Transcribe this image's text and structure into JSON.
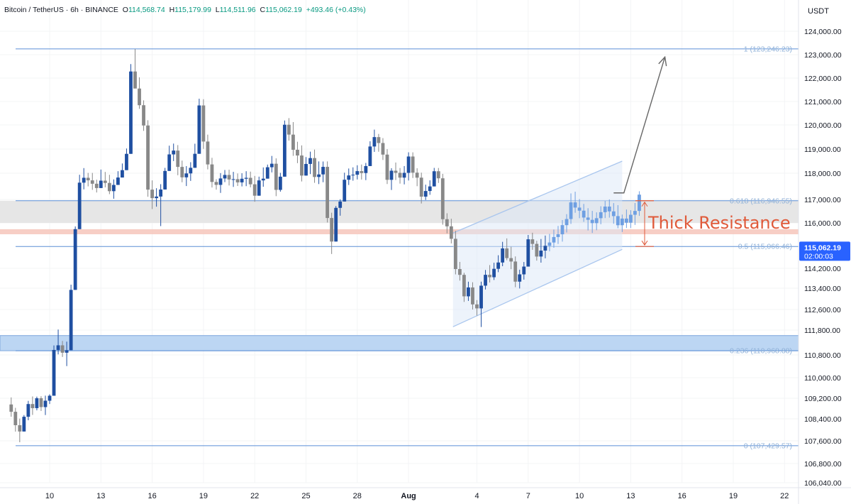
{
  "header": {
    "pair": "Bitcoin / TetherUS",
    "timeframe": "6h",
    "exchange": "BINANCE",
    "open": "114,568.74",
    "high": "115,179.99",
    "low": "114,511.96",
    "close": "115,062.19",
    "change": "+493.46 (+0.43%)"
  },
  "price_axis_unit": "USDT",
  "current_price": {
    "value": 115062.19,
    "label": "115,062.19",
    "timer": "02:00:03"
  },
  "annotation_text": "Thick Resistance",
  "colors": {
    "up": "#1f4fa1",
    "down": "#888888",
    "fib_line": "#5b8fd6",
    "resistance_text": "#e05a3a",
    "channel": "#a9c6ee"
  },
  "chart_data": {
    "type": "candlestick",
    "title": "Bitcoin / TetherUS · 6h · BINANCE",
    "ylabel": "USDT",
    "ylim": [
      106040,
      124700
    ],
    "y_ticks": [
      "124,000.00",
      "123,000.00",
      "122,000.00",
      "121,000.00",
      "120,000.00",
      "119,000.00",
      "118,000.00",
      "117,000.00",
      "116,000.00",
      "114,200.00",
      "113,400.00",
      "112,600.00",
      "111,800.00",
      "110,800.00",
      "110,000.00",
      "109,200.00",
      "108,400.00",
      "107,600.00",
      "106,800.00",
      "106,040.00"
    ],
    "x_ticks": [
      {
        "label": "10",
        "day": 10
      },
      {
        "label": "13",
        "day": 13
      },
      {
        "label": "16",
        "day": 16
      },
      {
        "label": "19",
        "day": 19
      },
      {
        "label": "22",
        "day": 22
      },
      {
        "label": "25",
        "day": 25
      },
      {
        "label": "28",
        "day": 28
      },
      {
        "label": "Aug",
        "day": 31
      },
      {
        "label": "4",
        "day": 35
      },
      {
        "label": "7",
        "day": 38
      },
      {
        "label": "10",
        "day": 41
      },
      {
        "label": "13",
        "day": 44
      },
      {
        "label": "16",
        "day": 47
      },
      {
        "label": "19",
        "day": 50
      },
      {
        "label": "22",
        "day": 53
      }
    ],
    "fib_levels": [
      {
        "level": "1",
        "price": 123246.23,
        "label": "1 (123,246.23)"
      },
      {
        "level": "0.618",
        "price": 116946.55,
        "label": "0.618 (116,946.55)"
      },
      {
        "level": "0.5",
        "price": 115066.46,
        "label": "0.5 (115,066.46)"
      },
      {
        "level": "0.236",
        "price": 110968.88,
        "label": "0.236 (110,968.88)"
      },
      {
        "level": "0",
        "price": 107429.57,
        "label": "0 (107,429.57)"
      }
    ],
    "zones": [
      {
        "name": "resistance-zone",
        "from": 116000,
        "to": 116946.55
      },
      {
        "name": "resistance-midline",
        "from": 115550,
        "to": 115750
      },
      {
        "name": "support-zone",
        "from": 110968.88,
        "to": 111580
      }
    ],
    "channel": {
      "lower": [
        [
          33.6,
          111930
        ],
        [
          43.5,
          114950
        ]
      ],
      "upper": [
        [
          33.6,
          115600
        ],
        [
          43.5,
          118500
        ]
      ]
    },
    "projection": [
      [
        43.0,
        117250
      ],
      [
        43.6,
        117250
      ],
      [
        46.0,
        122900
      ]
    ],
    "candles_6h": [
      [
        108958,
        109232,
        108480,
        108673
      ],
      [
        108673,
        108828,
        107935,
        108168
      ],
      [
        108168,
        108408,
        107549,
        107939
      ],
      [
        107939,
        108547,
        107939,
        108480
      ],
      [
        108480,
        109098,
        108347,
        108974
      ],
      [
        108974,
        109269,
        108551,
        108815
      ],
      [
        108815,
        109262,
        108729,
        109199
      ],
      [
        109199,
        109278,
        108705,
        108856
      ],
      [
        108856,
        109301,
        108547,
        109104
      ],
      [
        109104,
        109353,
        108977,
        109297
      ],
      [
        109297,
        111182,
        109297,
        111001
      ],
      [
        111001,
        111821,
        110823,
        111187
      ],
      [
        111187,
        111363,
        110728,
        110889
      ],
      [
        110889,
        111335,
        110407,
        110992
      ],
      [
        110992,
        113542,
        110992,
        113337
      ],
      [
        113337,
        115859,
        113337,
        115753
      ],
      [
        115753,
        117941,
        115753,
        117640
      ],
      [
        117640,
        118212,
        117385,
        117826
      ],
      [
        117826,
        118012,
        117499,
        117728
      ],
      [
        117728,
        118012,
        117366,
        117599
      ],
      [
        117599,
        117752,
        117266,
        117435
      ],
      [
        117435,
        118151,
        117435,
        117717
      ],
      [
        117717,
        118053,
        117462,
        117629
      ],
      [
        117629,
        117939,
        117203,
        117316
      ],
      [
        117316,
        117765,
        117029,
        117554
      ],
      [
        117554,
        118084,
        117554,
        117836
      ],
      [
        117836,
        118403,
        117836,
        118127
      ],
      [
        118127,
        119023,
        118127,
        118802
      ],
      [
        118802,
        122598,
        118802,
        122282
      ],
      [
        122282,
        123243,
        121975,
        121554
      ],
      [
        121554,
        122032,
        120688,
        120842
      ],
      [
        120842,
        121049,
        119754,
        119977
      ],
      [
        119977,
        120200,
        117103,
        117375
      ],
      [
        117375,
        117727,
        116592,
        117051
      ],
      [
        117051,
        117429,
        116693,
        117111
      ],
      [
        117111,
        117582,
        115873,
        117380
      ],
      [
        117380,
        118221,
        117380,
        118094
      ],
      [
        118094,
        119141,
        118094,
        118779
      ],
      [
        118779,
        119227,
        118503,
        118938
      ],
      [
        118938,
        119165,
        117922,
        118261
      ],
      [
        118261,
        118523,
        117655,
        117843
      ],
      [
        117843,
        118294,
        117511,
        117992
      ],
      [
        117992,
        118455,
        117707,
        118224
      ],
      [
        118224,
        119222,
        118224,
        118804
      ],
      [
        118804,
        121119,
        118804,
        120832
      ],
      [
        120832,
        121098,
        119009,
        119312
      ],
      [
        119312,
        119598,
        118158,
        118364
      ],
      [
        118364,
        118637,
        117456,
        117667
      ],
      [
        117667,
        117771,
        117374,
        117556
      ],
      [
        117556,
        118005,
        117249,
        117800
      ],
      [
        117800,
        118133,
        117661,
        117934
      ],
      [
        117934,
        118145,
        117533,
        117762
      ],
      [
        117762,
        118056,
        117478,
        117773
      ],
      [
        117773,
        117990,
        117513,
        117651
      ],
      [
        117651,
        117998,
        117497,
        117789
      ],
      [
        117789,
        118083,
        117507,
        117824
      ],
      [
        117824,
        118066,
        117462,
        117578
      ],
      [
        117578,
        117897,
        116902,
        117144
      ],
      [
        117144,
        117869,
        117144,
        117726
      ],
      [
        117726,
        118240,
        117484,
        117793
      ],
      [
        117793,
        118357,
        117793,
        118247
      ],
      [
        118247,
        118716,
        118035,
        118393
      ],
      [
        118393,
        118615,
        117126,
        117365
      ],
      [
        117365,
        118015,
        117297,
        117868
      ],
      [
        117868,
        120189,
        117868,
        120009
      ],
      [
        120009,
        120291,
        119349,
        119599
      ],
      [
        119599,
        120121,
        118720,
        118971
      ],
      [
        118971,
        119303,
        118417,
        118734
      ],
      [
        118734,
        119153,
        117686,
        117910
      ],
      [
        117910,
        118668,
        117910,
        118384
      ],
      [
        118384,
        118893,
        117966,
        118627
      ],
      [
        118627,
        118980,
        117634,
        117856
      ],
      [
        117856,
        118489,
        117586,
        117954
      ],
      [
        117954,
        118485,
        117657,
        118263
      ],
      [
        118263,
        118489,
        116018,
        116209
      ],
      [
        116209,
        116435,
        114768,
        115261
      ],
      [
        115261,
        116719,
        115261,
        116642
      ],
      [
        116642,
        117006,
        116307,
        116912
      ],
      [
        116912,
        118021,
        116912,
        117751
      ],
      [
        117751,
        118195,
        117551,
        117915
      ],
      [
        117915,
        118243,
        117715,
        117943
      ],
      [
        117943,
        118329,
        117763,
        118086
      ],
      [
        118086,
        118359,
        117758,
        118008
      ],
      [
        118008,
        118426,
        117736,
        118296
      ],
      [
        118296,
        119323,
        118296,
        119107
      ],
      [
        119107,
        119806,
        118883,
        119496
      ],
      [
        119496,
        119627,
        118889,
        119251
      ],
      [
        119251,
        119454,
        118548,
        118771
      ],
      [
        118771,
        118997,
        117588,
        117748
      ],
      [
        117748,
        118206,
        117363,
        118104
      ],
      [
        118104,
        118443,
        117740,
        118016
      ],
      [
        118016,
        118215,
        117604,
        117832
      ],
      [
        117832,
        118296,
        117575,
        118015
      ],
      [
        118015,
        118866,
        117723,
        118692
      ],
      [
        118692,
        118864,
        117817,
        118022
      ],
      [
        118022,
        118204,
        117505,
        117830
      ],
      [
        117830,
        118023,
        116828,
        117108
      ],
      [
        117108,
        117564,
        116977,
        117322
      ],
      [
        117322,
        117729,
        117178,
        117497
      ],
      [
        117497,
        118220,
        117497,
        118081
      ],
      [
        118081,
        118217,
        117629,
        117806
      ],
      [
        117806,
        117975,
        115930,
        116158
      ],
      [
        116158,
        116411,
        115586,
        115864
      ],
      [
        115864,
        116177,
        115187,
        115369
      ],
      [
        115369,
        115685,
        113956,
        114171
      ],
      [
        114171,
        114454,
        113706,
        113937
      ],
      [
        113937,
        114020,
        112885,
        113095
      ],
      [
        113095,
        113662,
        112923,
        113431
      ],
      [
        113431,
        113640,
        112600,
        112792
      ],
      [
        112792,
        112952,
        112362,
        112642
      ]
    ],
    "channel_candles": [
      [
        112642,
        113664,
        111920,
        113502
      ],
      [
        113502,
        114134,
        113352,
        113939
      ],
      [
        113939,
        114329,
        113631,
        113842
      ],
      [
        113842,
        114421,
        113731,
        114180
      ],
      [
        114180,
        114718,
        114046,
        114431
      ],
      [
        114431,
        115250,
        114284,
        114989
      ],
      [
        114989,
        115386,
        114520,
        114605
      ],
      [
        114605,
        115055,
        114166,
        114470
      ],
      [
        114470,
        114672,
        113440,
        113664
      ],
      [
        113664,
        114146,
        113390,
        113957
      ],
      [
        113957,
        114451,
        113745,
        114269
      ],
      [
        114269,
        115522,
        114269,
        115350
      ],
      [
        115350,
        115610,
        114933,
        115168
      ],
      [
        115168,
        115290,
        114505,
        114667
      ],
      [
        114667,
        115362,
        114425,
        114903
      ],
      [
        114903,
        115498,
        114597,
        115093
      ],
      [
        115093,
        115564,
        114873,
        115223
      ],
      [
        115223,
        115735,
        115015,
        115440
      ],
      [
        115440,
        115879,
        115166,
        115549
      ],
      [
        115549,
        116121,
        115258,
        115911
      ],
      [
        115911,
        116373,
        115620,
        116165
      ],
      [
        116165,
        117231,
        115960,
        116876
      ],
      [
        116876,
        117295,
        116432,
        116654
      ],
      [
        116654,
        117015,
        116201,
        116522
      ],
      [
        116522,
        116810,
        116044,
        116229
      ],
      [
        116229,
        116627,
        115700,
        116131
      ],
      [
        116131,
        116512,
        115600,
        115991
      ],
      [
        115991,
        116450,
        115710,
        116201
      ],
      [
        116201,
        116711,
        115948,
        116457
      ],
      [
        116457,
        116938,
        116206,
        116697
      ],
      [
        116697,
        117002,
        116226,
        116492
      ],
      [
        116492,
        116845,
        115967,
        116290
      ],
      [
        116290,
        116757,
        115791,
        115908
      ],
      [
        115908,
        116355,
        115639,
        116184
      ],
      [
        116184,
        116572,
        115800,
        116009
      ],
      [
        116009,
        116543,
        115800,
        116347
      ],
      [
        116347,
        116849,
        115920,
        116511
      ],
      [
        116511,
        117313,
        116300,
        117184
      ]
    ]
  }
}
